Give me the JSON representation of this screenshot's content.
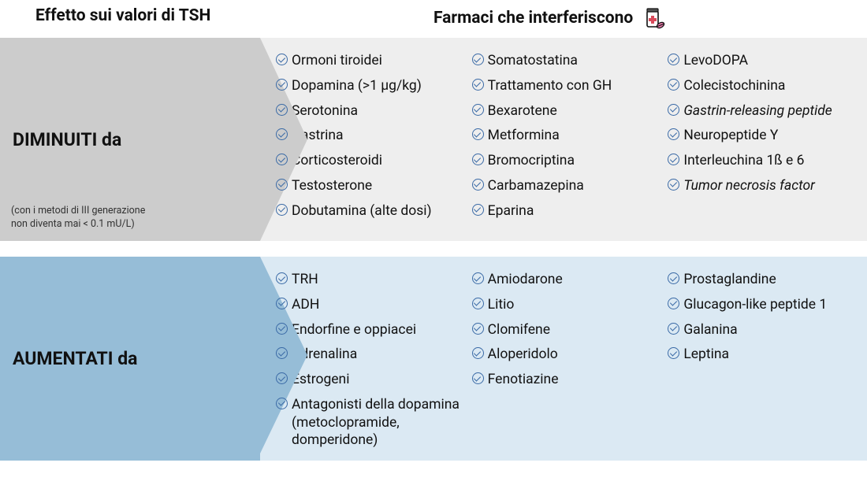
{
  "headers": {
    "left": "Effetto sui valori di TSH",
    "right": "Farmaci che interferiscono"
  },
  "section_decreased": {
    "title": "DIMINUITI da",
    "note_line1": "(con i metodi di III generazione",
    "note_line2": "non diventa mai < 0.1 mU/L)",
    "col1": [
      {
        "label": "Ormoni tiroidei"
      },
      {
        "label": "Dopamina (>1 μg/kg)"
      },
      {
        "label": "Serotonina"
      },
      {
        "label": "Gastrina"
      },
      {
        "label": "Corticosteroidi"
      },
      {
        "label": "Testosterone"
      },
      {
        "label": "Dobutamina (alte dosi)"
      }
    ],
    "col2": [
      {
        "label": "Somatostatina"
      },
      {
        "label": "Trattamento con GH"
      },
      {
        "label": "Bexarotene"
      },
      {
        "label": "Metformina"
      },
      {
        "label": "Bromocriptina"
      },
      {
        "label": "Carbamazepina"
      },
      {
        "label": "Eparina"
      }
    ],
    "col3": [
      {
        "label": "LevoDOPA"
      },
      {
        "label": "Colecistochinina"
      },
      {
        "label": "Gastrin-releasing peptide",
        "italic": true
      },
      {
        "label": "Neuropeptide Y"
      },
      {
        "label": "Interleuchina 1ß e 6"
      },
      {
        "label": "Tumor necrosis factor",
        "italic": true
      }
    ]
  },
  "section_increased": {
    "title": "AUMENTATI da",
    "col1": [
      {
        "label": "TRH"
      },
      {
        "label": "ADH"
      },
      {
        "label": "Endorfine e oppiacei"
      },
      {
        "label": "Adrenalina"
      },
      {
        "label": "Estrogeni"
      },
      {
        "label": "Antagonisti della dopamina (metoclopramide, domperidone)"
      }
    ],
    "col2": [
      {
        "label": "Amiodarone"
      },
      {
        "label": "Litio"
      },
      {
        "label": "Clomifene"
      },
      {
        "label": "Aloperidolo"
      },
      {
        "label": "Fenotiazine"
      }
    ],
    "col3": [
      {
        "label": "Prostaglandine"
      },
      {
        "label": "Glucagon-like peptide 1"
      },
      {
        "label": "Galanina"
      },
      {
        "label": "Leptina"
      }
    ]
  }
}
